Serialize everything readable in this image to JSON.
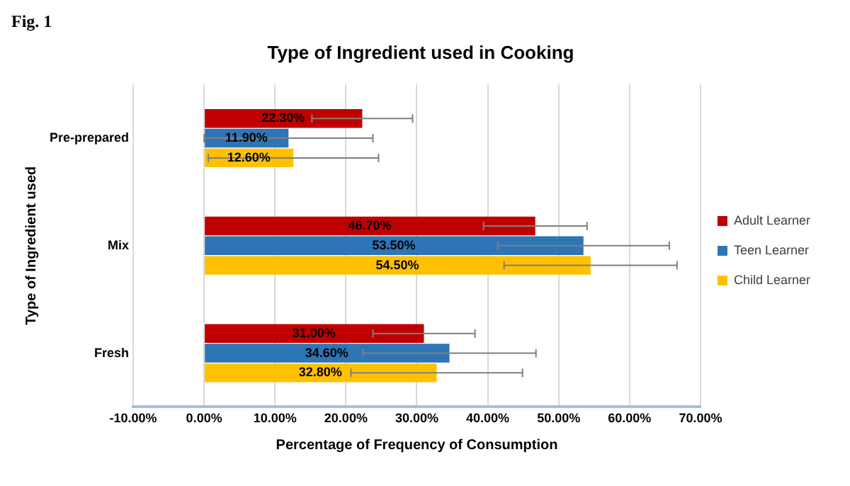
{
  "chart_data": {
    "type": "bar",
    "orientation": "horizontal",
    "title": "Type of Ingredient used in Cooking",
    "xlabel": "Percentage of Frequency of Consumption",
    "ylabel": "Type of Ingredient used",
    "annotations": [
      "Fig. 1"
    ],
    "categories": [
      "Pre-prepared",
      "Mix",
      "Fresh"
    ],
    "series": [
      {
        "name": "Adult Learner",
        "color": "#c00000",
        "values": [
          22.3,
          46.7,
          31.0
        ],
        "value_labels": [
          "22.30%",
          "46.70%",
          "31.00%"
        ],
        "errors": [
          7.1,
          7.3,
          7.2
        ]
      },
      {
        "name": "Teen Learner",
        "color": "#2e75b6",
        "values": [
          11.9,
          53.5,
          34.6
        ],
        "value_labels": [
          "11.90%",
          "53.50%",
          "34.60%"
        ],
        "errors": [
          11.9,
          12.1,
          12.2
        ]
      },
      {
        "name": "Child Learner",
        "color": "#ffc000",
        "values": [
          12.6,
          54.5,
          32.8
        ],
        "value_labels": [
          "12.60%",
          "54.50%",
          "32.80%"
        ],
        "errors": [
          12,
          12.2,
          12.1
        ]
      }
    ],
    "xlim": [
      -10,
      70
    ],
    "xticks": [
      {
        "value": -10,
        "label": "-10.00%"
      },
      {
        "value": 0,
        "label": "0.00%"
      },
      {
        "value": 10,
        "label": "10.00%"
      },
      {
        "value": 20,
        "label": "20.00%"
      },
      {
        "value": 30,
        "label": "30.00%"
      },
      {
        "value": 40,
        "label": "40.00%"
      },
      {
        "value": 50,
        "label": "50.00%"
      },
      {
        "value": 60,
        "label": "60.00%"
      },
      {
        "value": 70,
        "label": "70.00%"
      }
    ],
    "grid": "x",
    "legend": "right"
  }
}
